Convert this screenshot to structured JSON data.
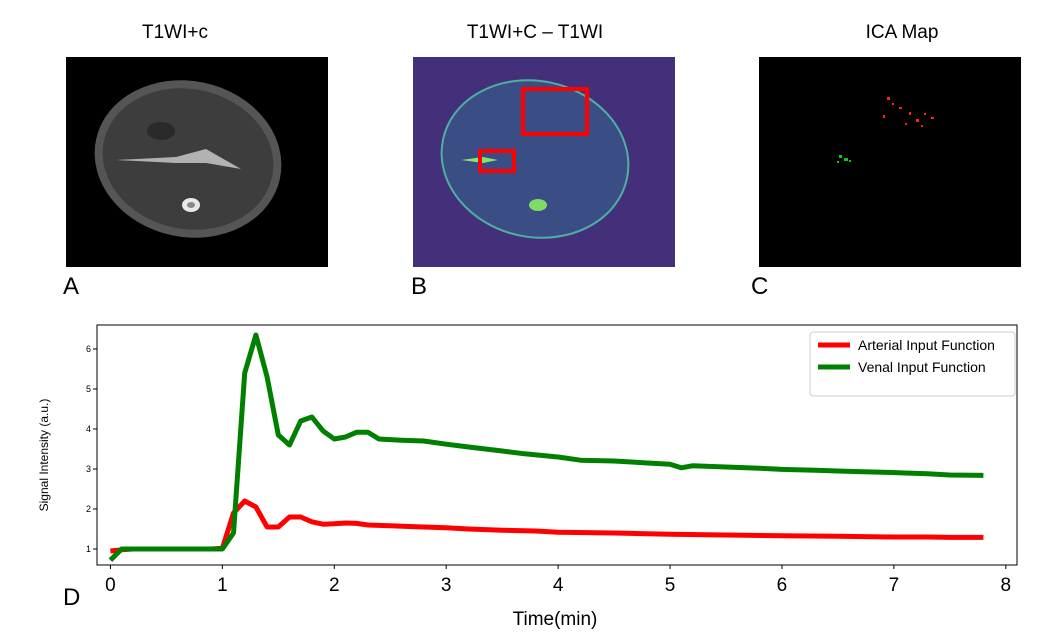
{
  "panels": {
    "a": {
      "title": "T1WI+c",
      "letter": "A"
    },
    "b": {
      "title": "T1WI+C – T1WI",
      "letter": "B"
    },
    "c": {
      "title": "ICA Map",
      "letter": "C"
    },
    "d": {
      "letter": "D"
    }
  },
  "colors": {
    "arterial": "#ff0000",
    "venal": "#008000",
    "b_bg": "#44307a"
  },
  "chart_data": {
    "type": "line",
    "title": "",
    "xlabel": "Time(min)",
    "ylabel": "Signal Intensity (a.u.)",
    "xlim": [
      -0.12,
      8.1
    ],
    "ylim": [
      0.6,
      6.6
    ],
    "xticks": [
      0,
      1,
      2,
      3,
      4,
      5,
      6,
      7,
      8
    ],
    "yticks": [
      1,
      2,
      3,
      4,
      5,
      6
    ],
    "legend": "top-right",
    "series": [
      {
        "name": "Arterial Input Function",
        "color": "#ff0000",
        "points": [
          [
            0,
            0.95
          ],
          [
            0.1,
            0.98
          ],
          [
            0.2,
            1.0
          ],
          [
            0.3,
            1.0
          ],
          [
            0.4,
            1.0
          ],
          [
            0.5,
            1.0
          ],
          [
            0.6,
            1.0
          ],
          [
            0.7,
            1.0
          ],
          [
            0.8,
            1.0
          ],
          [
            0.9,
            1.0
          ],
          [
            1.0,
            1.02
          ],
          [
            1.1,
            1.9
          ],
          [
            1.2,
            2.2
          ],
          [
            1.3,
            2.05
          ],
          [
            1.4,
            1.55
          ],
          [
            1.5,
            1.55
          ],
          [
            1.6,
            1.8
          ],
          [
            1.7,
            1.8
          ],
          [
            1.8,
            1.68
          ],
          [
            1.9,
            1.62
          ],
          [
            2.0,
            1.63
          ],
          [
            2.1,
            1.65
          ],
          [
            2.2,
            1.64
          ],
          [
            2.3,
            1.6
          ],
          [
            2.5,
            1.58
          ],
          [
            2.7,
            1.56
          ],
          [
            3.0,
            1.53
          ],
          [
            3.2,
            1.5
          ],
          [
            3.5,
            1.47
          ],
          [
            3.8,
            1.45
          ],
          [
            4.0,
            1.42
          ],
          [
            4.5,
            1.4
          ],
          [
            5.0,
            1.37
          ],
          [
            5.5,
            1.35
          ],
          [
            6.0,
            1.33
          ],
          [
            6.5,
            1.32
          ],
          [
            7.0,
            1.3
          ],
          [
            7.3,
            1.3
          ],
          [
            7.5,
            1.29
          ],
          [
            7.8,
            1.29
          ]
        ]
      },
      {
        "name": "Venal Input Function",
        "color": "#008000",
        "points": [
          [
            0,
            0.72
          ],
          [
            0.1,
            1.0
          ],
          [
            0.2,
            1.0
          ],
          [
            0.3,
            1.0
          ],
          [
            0.4,
            1.0
          ],
          [
            0.5,
            1.0
          ],
          [
            0.6,
            1.0
          ],
          [
            0.7,
            1.0
          ],
          [
            0.8,
            1.0
          ],
          [
            0.9,
            1.0
          ],
          [
            1.0,
            1.0
          ],
          [
            1.1,
            1.4
          ],
          [
            1.2,
            5.4
          ],
          [
            1.3,
            6.35
          ],
          [
            1.4,
            5.3
          ],
          [
            1.5,
            3.85
          ],
          [
            1.6,
            3.6
          ],
          [
            1.7,
            4.2
          ],
          [
            1.8,
            4.3
          ],
          [
            1.9,
            3.95
          ],
          [
            2.0,
            3.75
          ],
          [
            2.1,
            3.8
          ],
          [
            2.2,
            3.92
          ],
          [
            2.3,
            3.92
          ],
          [
            2.4,
            3.75
          ],
          [
            2.6,
            3.72
          ],
          [
            2.8,
            3.7
          ],
          [
            3.0,
            3.62
          ],
          [
            3.2,
            3.55
          ],
          [
            3.5,
            3.45
          ],
          [
            3.7,
            3.38
          ],
          [
            4.0,
            3.3
          ],
          [
            4.2,
            3.22
          ],
          [
            4.5,
            3.2
          ],
          [
            4.8,
            3.15
          ],
          [
            5.0,
            3.12
          ],
          [
            5.1,
            3.03
          ],
          [
            5.2,
            3.08
          ],
          [
            5.5,
            3.05
          ],
          [
            5.8,
            3.02
          ],
          [
            6.0,
            2.99
          ],
          [
            6.3,
            2.97
          ],
          [
            6.6,
            2.94
          ],
          [
            6.9,
            2.92
          ],
          [
            7.1,
            2.9
          ],
          [
            7.3,
            2.88
          ],
          [
            7.5,
            2.85
          ],
          [
            7.8,
            2.84
          ]
        ]
      }
    ]
  }
}
